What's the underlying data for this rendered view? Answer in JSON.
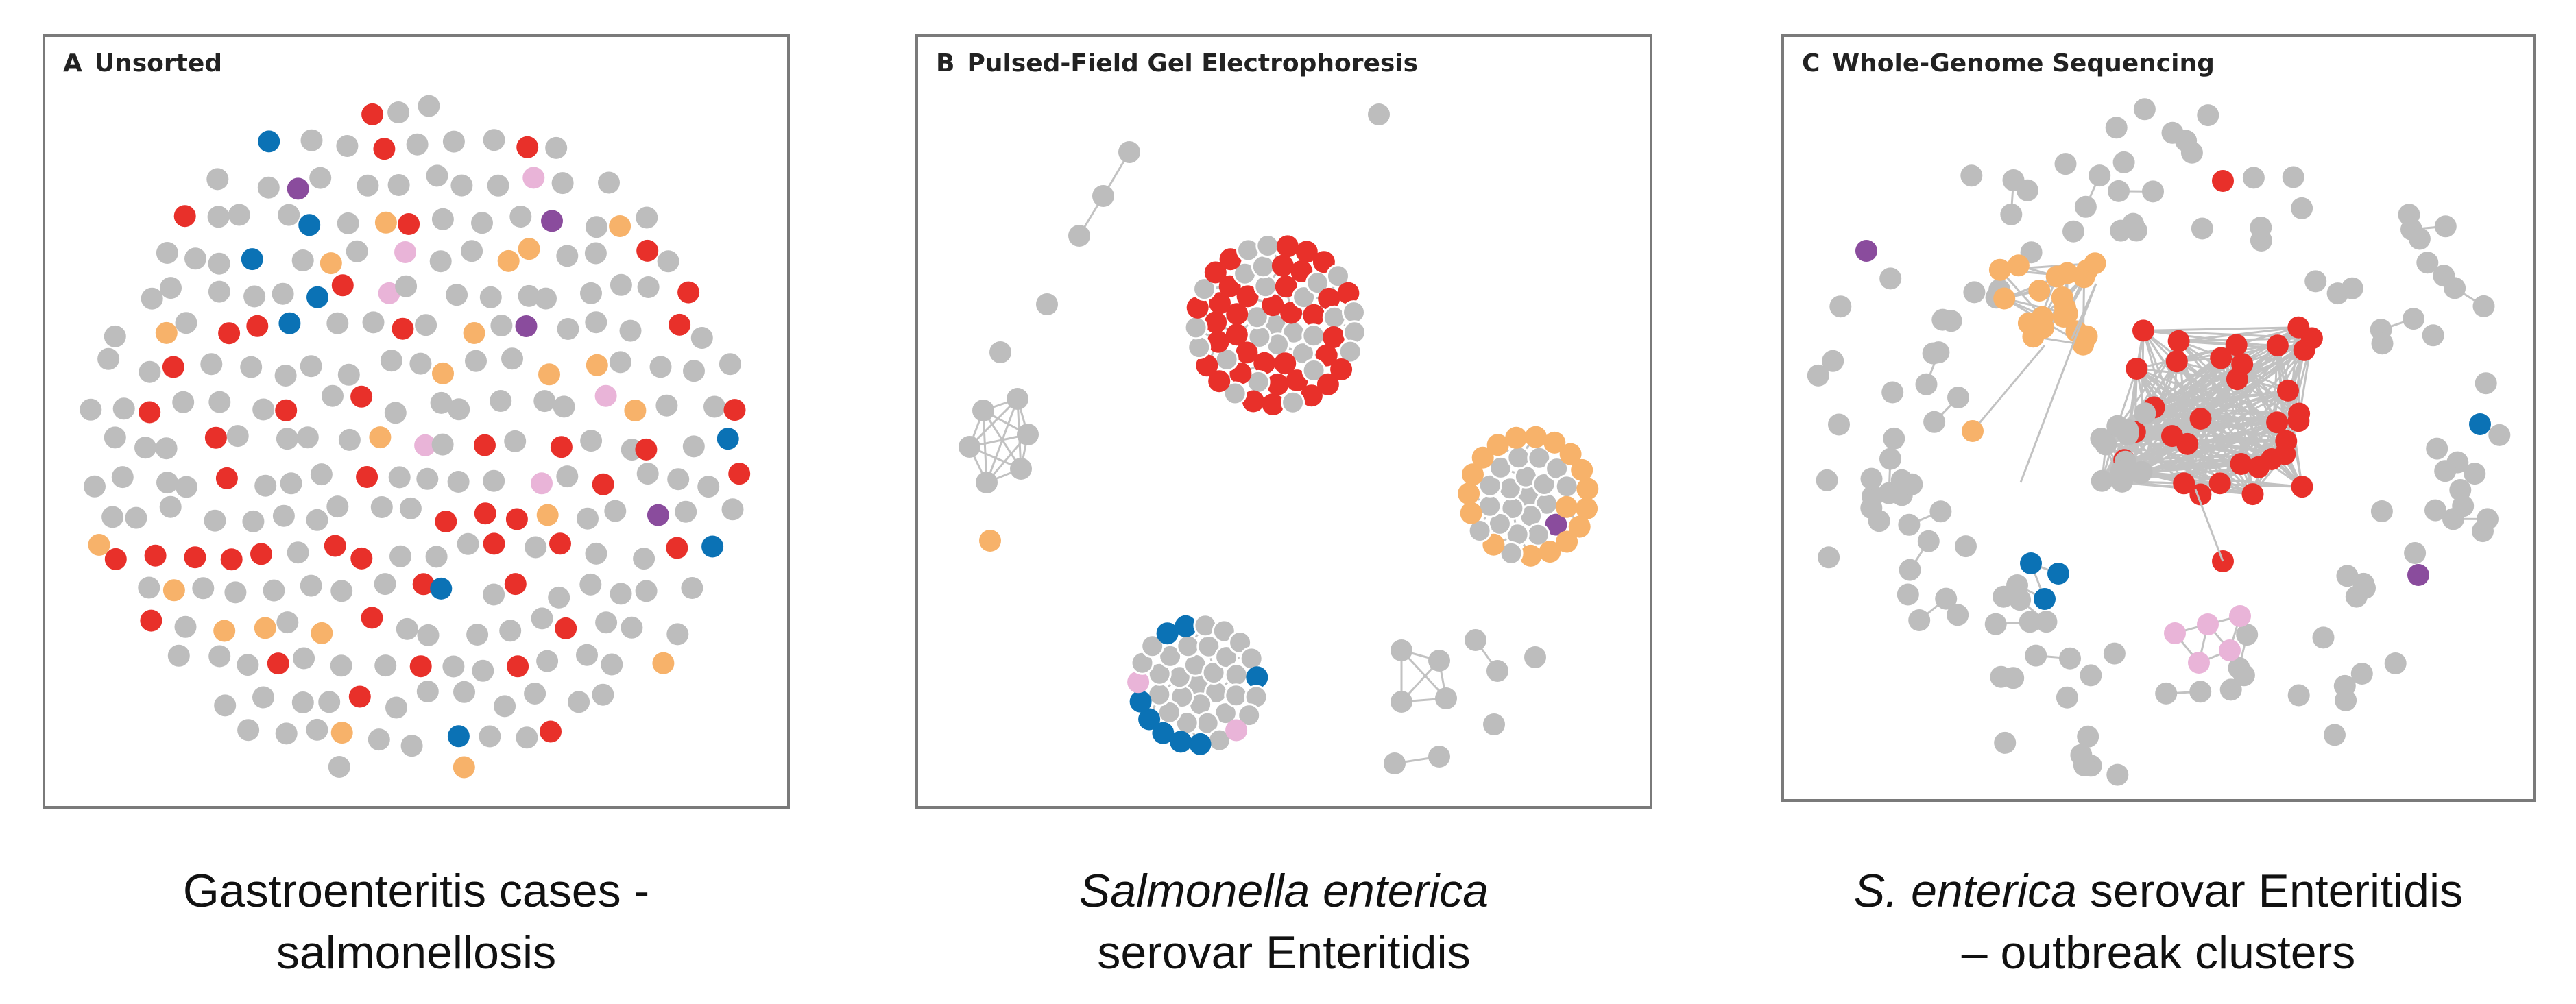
{
  "colors": {
    "gray": "#bdbdbd",
    "red": "#e8302a",
    "orange": "#f7b26a",
    "blue": "#0b72b5",
    "purple": "#8a4c9d",
    "pink": "#e9b4d8",
    "edge": "#c2c2c2",
    "frame": "#7a7a7a"
  },
  "panels": [
    {
      "letter": "A",
      "title": "Unsorted"
    },
    {
      "letter": "B",
      "title": "Pulsed-Field Gel Electrophoresis"
    },
    {
      "letter": "C",
      "title": "Whole-Genome Sequencing"
    }
  ],
  "captions": {
    "a": {
      "line1": "Gastroenteritis cases -",
      "line2": "salmonellosis"
    },
    "b": {
      "line1_italic": "Salmonella enterica",
      "line2": "serovar Enteritidis"
    },
    "c": {
      "line1_italic": "S. enterica",
      "line1_rest": " serovar Enteritidis",
      "line2": "– outbreak clusters"
    }
  }
}
